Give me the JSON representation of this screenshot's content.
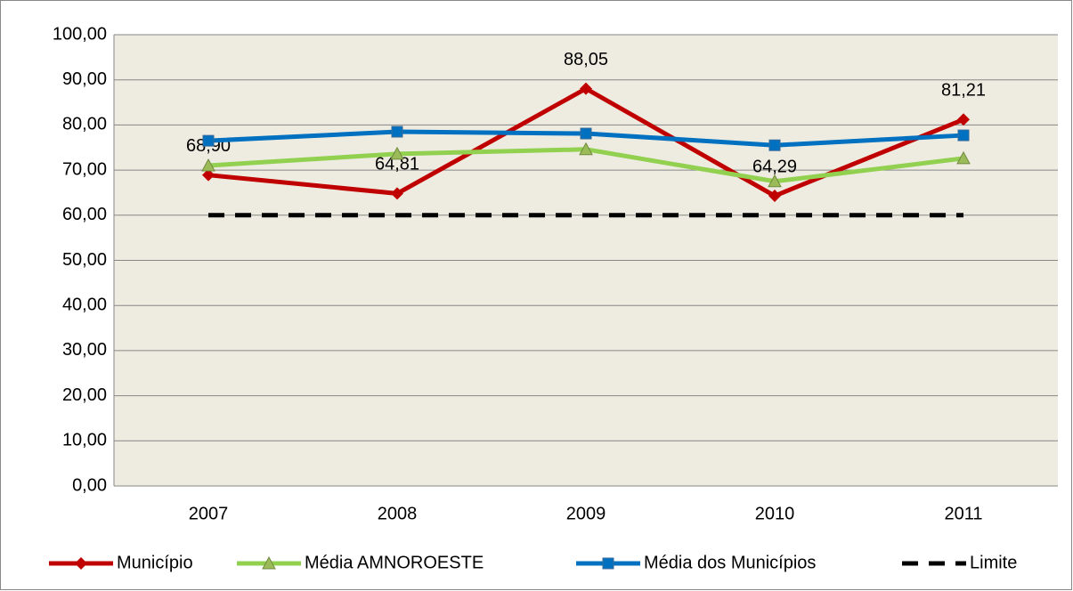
{
  "chart_data": {
    "type": "line",
    "categories": [
      "2007",
      "2008",
      "2009",
      "2010",
      "2011"
    ],
    "series": [
      {
        "name": "Município",
        "color": "#c00000",
        "marker": "diamond",
        "values": [
          68.9,
          64.81,
          88.05,
          64.29,
          81.21
        ],
        "value_labels": [
          "68,90",
          "64,81",
          "88,05",
          "64,29",
          "81,21"
        ]
      },
      {
        "name": "Média AMNOROESTE",
        "color": "#92d050",
        "marker": "triangle",
        "values": [
          71.0,
          73.6,
          74.6,
          67.5,
          72.6
        ]
      },
      {
        "name": "Média dos Municípios",
        "color": "#0070c0",
        "marker": "square",
        "values": [
          76.5,
          78.5,
          78.1,
          75.5,
          77.7
        ]
      },
      {
        "name": "Limite",
        "color": "#000000",
        "dashed": true,
        "values": [
          60,
          60,
          60,
          60,
          60
        ]
      }
    ],
    "ylim": [
      0,
      100
    ],
    "yticks": [
      {
        "value": 0,
        "label": "0,00"
      },
      {
        "value": 10,
        "label": "10,00"
      },
      {
        "value": 20,
        "label": "20,00"
      },
      {
        "value": 30,
        "label": "30,00"
      },
      {
        "value": 40,
        "label": "40,00"
      },
      {
        "value": 50,
        "label": "50,00"
      },
      {
        "value": 60,
        "label": "60,00"
      },
      {
        "value": 70,
        "label": "70,00"
      },
      {
        "value": 80,
        "label": "80,00"
      },
      {
        "value": 90,
        "label": "90,00"
      },
      {
        "value": 100,
        "label": "100,00"
      }
    ],
    "grid": true,
    "legend": "bottom"
  }
}
